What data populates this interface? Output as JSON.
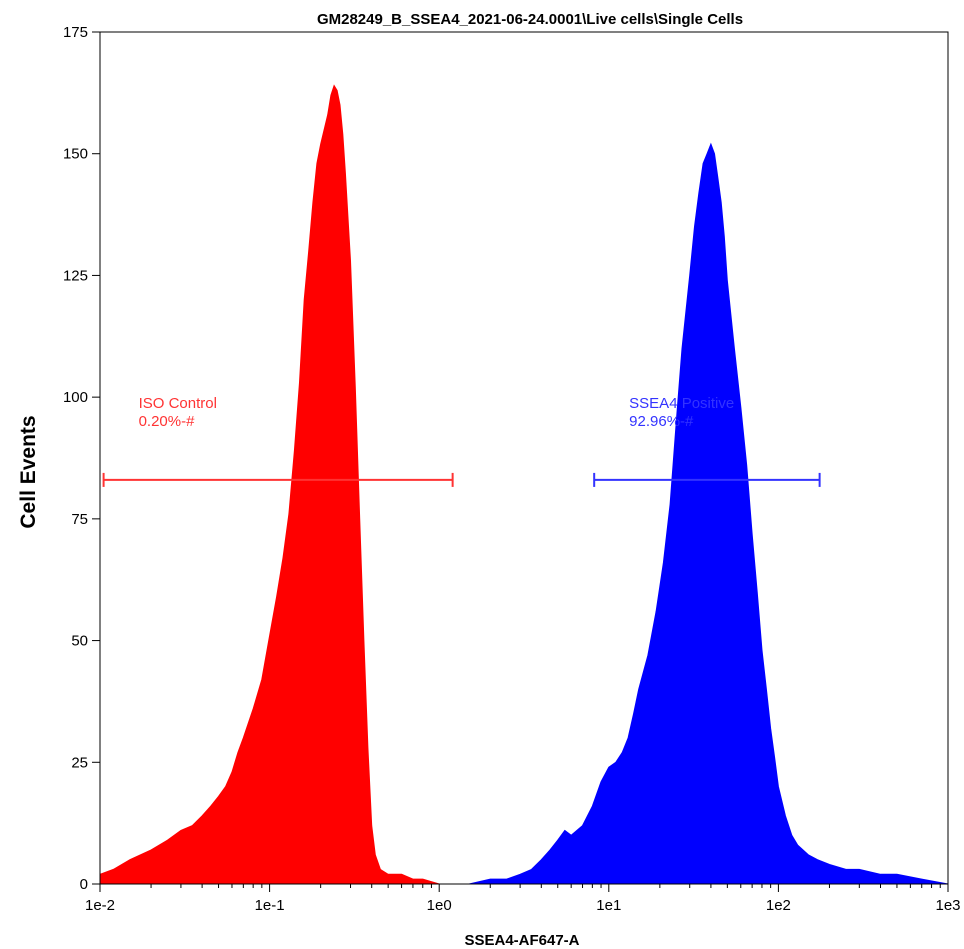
{
  "chart_data": {
    "type": "area",
    "title": "GM28249_B_SSEA4_2021-06-24.0001\\Live cells\\Single Cells",
    "xlabel": "SSEA4-AF647-A",
    "ylabel": "Cell Events",
    "x_scale": "log",
    "xlim": [
      0.01,
      1000
    ],
    "ylim": [
      0,
      175
    ],
    "x_ticks": [
      {
        "value": 0.01,
        "label": "1e-2"
      },
      {
        "value": 0.1,
        "label": "1e-1"
      },
      {
        "value": 1,
        "label": "1e0"
      },
      {
        "value": 10,
        "label": "1e1"
      },
      {
        "value": 100,
        "label": "1e2"
      },
      {
        "value": 1000,
        "label": "1e3"
      }
    ],
    "y_ticks": [
      0,
      25,
      50,
      75,
      100,
      125,
      150,
      175
    ],
    "series": [
      {
        "color": "#ff0000",
        "x": [
          0.01,
          0.012,
          0.015,
          0.02,
          0.025,
          0.03,
          0.035,
          0.04,
          0.045,
          0.05,
          0.055,
          0.06,
          0.065,
          0.07,
          0.08,
          0.09,
          0.1,
          0.11,
          0.12,
          0.13,
          0.14,
          0.15,
          0.16,
          0.17,
          0.18,
          0.19,
          0.2,
          0.21,
          0.22,
          0.23,
          0.24,
          0.25,
          0.26,
          0.27,
          0.28,
          0.3,
          0.32,
          0.34,
          0.36,
          0.38,
          0.4,
          0.42,
          0.45,
          0.5,
          0.55,
          0.6,
          0.7,
          0.8,
          1.0,
          1.2
        ],
        "values": [
          2,
          3,
          5,
          7,
          9,
          11,
          12,
          14,
          16,
          18,
          20,
          23,
          27,
          30,
          36,
          42,
          51,
          59,
          67,
          76,
          89,
          103,
          120,
          130,
          140,
          148,
          152,
          155,
          158,
          162,
          164,
          163,
          160,
          154,
          146,
          128,
          102,
          75,
          50,
          28,
          12,
          6,
          3,
          2,
          2,
          2,
          1,
          1,
          0,
          0
        ]
      },
      {
        "color": "#0000ff",
        "x": [
          1.5,
          2,
          2.5,
          3,
          3.5,
          4,
          4.5,
          5,
          5.5,
          6,
          7,
          8,
          9,
          10,
          11,
          12,
          13,
          14,
          15,
          17,
          19,
          21,
          23,
          25,
          27,
          30,
          32,
          34,
          36,
          38,
          40,
          42,
          44,
          46,
          48,
          50,
          55,
          60,
          65,
          70,
          75,
          80,
          85,
          90,
          95,
          100,
          110,
          120,
          130,
          150,
          170,
          200,
          250,
          300,
          400,
          500,
          700,
          1000
        ],
        "values": [
          0,
          1,
          1,
          2,
          3,
          5,
          7,
          9,
          11,
          10,
          12,
          16,
          21,
          24,
          25,
          27,
          30,
          35,
          40,
          47,
          56,
          66,
          78,
          95,
          110,
          125,
          135,
          142,
          148,
          150,
          152,
          150,
          145,
          140,
          133,
          124,
          110,
          98,
          86,
          72,
          60,
          48,
          40,
          32,
          26,
          20,
          14,
          10,
          8,
          6,
          5,
          4,
          3,
          3,
          2,
          2,
          1,
          0
        ]
      }
    ],
    "gates": [
      {
        "name": "ISO Control",
        "stat": "0.20%-#",
        "color": "#ff3333",
        "x_start": 0.0105,
        "x_end": 1.2,
        "y": 83
      },
      {
        "name": "SSEA4 Positive",
        "stat": "92.96%-#",
        "color": "#3333ff",
        "x_start": 8.2,
        "x_end": 175,
        "y": 83
      }
    ],
    "grid": false,
    "legend": "none"
  }
}
